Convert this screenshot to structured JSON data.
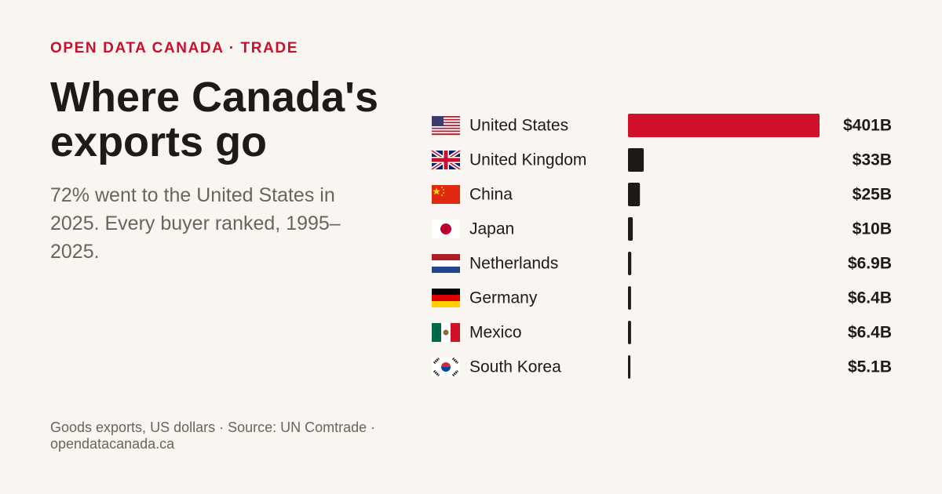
{
  "header": {
    "kicker": "OPEN DATA CANADA · TRADE",
    "title": "Where Canada's exports go",
    "subtitle": "72% went to the United States in 2025. Every buyer ranked, 1995–2025."
  },
  "chart_data": {
    "type": "bar",
    "orientation": "horizontal",
    "categories": [
      "United States",
      "United Kingdom",
      "China",
      "Japan",
      "Netherlands",
      "Germany",
      "Mexico",
      "South Korea"
    ],
    "values": [
      401,
      33,
      25,
      10,
      6.9,
      6.4,
      6.4,
      5.1
    ],
    "value_labels": [
      "$401B",
      "$33B",
      "$25B",
      "$10B",
      "$6.9B",
      "$6.4B",
      "$6.4B",
      "$5.1B"
    ],
    "colors": [
      "#d0102a",
      "#1f1a17",
      "#1f1a17",
      "#1f1a17",
      "#1f1a17",
      "#1f1a17",
      "#1f1a17",
      "#1f1a17"
    ]
  },
  "footer": {
    "note": "Goods exports, US dollars · Source: UN Comtrade · opendatacanada.ca"
  }
}
